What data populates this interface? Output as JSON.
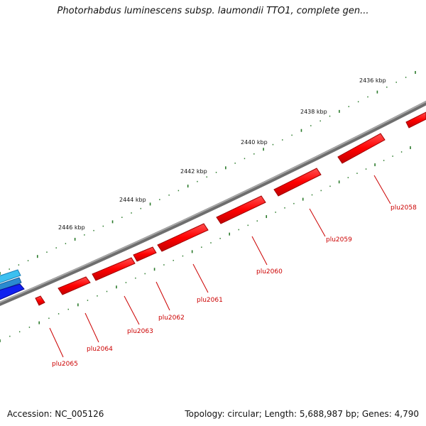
{
  "title": "Photorhabdus luminescens subsp. laumondii TTO1, complete gen...",
  "footer": {
    "accession": "Accession: NC_005126",
    "summary": "Topology: circular; Length: 5,688,987 bp; Genes: 4,790"
  },
  "ruler": [
    "2436 kbp",
    "2438 kbp",
    "2440 kbp",
    "2442 kbp",
    "2444 kbp",
    "2446 kbp"
  ],
  "genes": [
    "plu2058",
    "plu2059",
    "plu2060",
    "plu2061",
    "plu2062",
    "plu2063",
    "plu2064",
    "plu2065"
  ],
  "colors": {
    "backbone": "#808080",
    "gene": "#ff0000",
    "gene_dark": "#b00000",
    "tick": "#2a7a2a",
    "neighbor_light": "#3fa0d8",
    "neighbor_dark": "#1020e0"
  }
}
